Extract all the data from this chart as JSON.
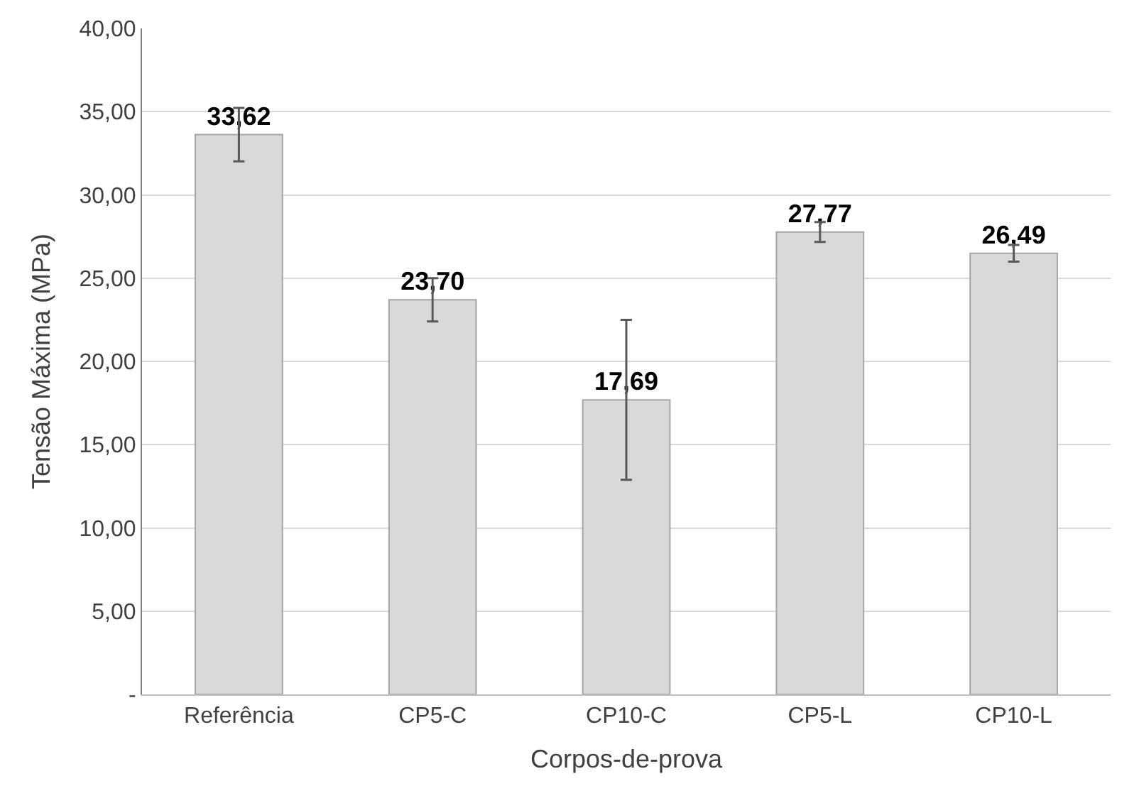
{
  "chart_data": {
    "type": "bar",
    "xlabel": "Corpos-de-prova",
    "ylabel": "Tensão Máxima (MPa)",
    "categories": [
      "Referência",
      "CP5-C",
      "CP10-C",
      "CP5-L",
      "CP10-L"
    ],
    "values": [
      33.62,
      23.7,
      17.69,
      27.77,
      26.49
    ],
    "value_labels": [
      "33,62",
      "23,70",
      "17,69",
      "27,77",
      "26,49"
    ],
    "errors": [
      1.6,
      1.3,
      4.8,
      0.6,
      0.5
    ],
    "color": "#d9d9d9",
    "ylim": [
      0,
      40
    ],
    "yticks": [
      {
        "value": 0,
        "label": "-"
      },
      {
        "value": 5,
        "label": "5,00"
      },
      {
        "value": 10,
        "label": "10,00"
      },
      {
        "value": 15,
        "label": "15,00"
      },
      {
        "value": 20,
        "label": "20,00"
      },
      {
        "value": 25,
        "label": "25,00"
      },
      {
        "value": 30,
        "label": "30,00"
      },
      {
        "value": 35,
        "label": "35,00"
      },
      {
        "value": 40,
        "label": "40,00"
      }
    ],
    "grid": "y"
  }
}
